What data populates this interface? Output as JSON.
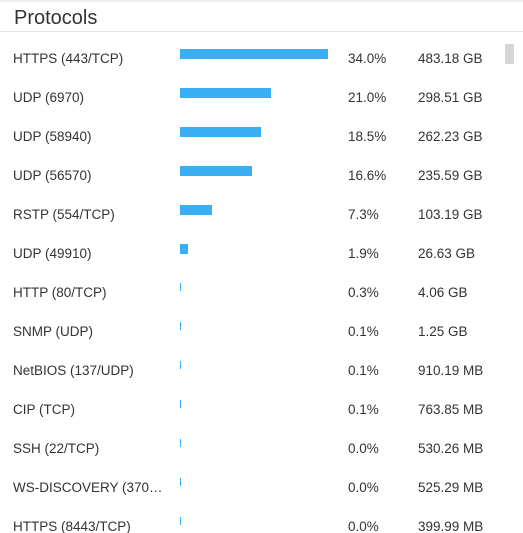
{
  "panel": {
    "title": "Protocols"
  },
  "colors": {
    "bar": "#3aaef2",
    "text": "#333333"
  },
  "protocols": [
    {
      "name": "HTTPS (443/TCP)",
      "share_pct": 34.0,
      "percent": "34.0%",
      "volume": "483.18 GB"
    },
    {
      "name": "UDP (6970)",
      "share_pct": 21.0,
      "percent": "21.0%",
      "volume": "298.51 GB"
    },
    {
      "name": "UDP (58940)",
      "share_pct": 18.5,
      "percent": "18.5%",
      "volume": "262.23 GB"
    },
    {
      "name": "UDP (56570)",
      "share_pct": 16.6,
      "percent": "16.6%",
      "volume": "235.59 GB"
    },
    {
      "name": "RSTP (554/TCP)",
      "share_pct": 7.3,
      "percent": "7.3%",
      "volume": "103.19 GB"
    },
    {
      "name": "UDP (49910)",
      "share_pct": 1.9,
      "percent": "1.9%",
      "volume": "26.63 GB"
    },
    {
      "name": "HTTP (80/TCP)",
      "share_pct": 0.3,
      "percent": "0.3%",
      "volume": "4.06 GB"
    },
    {
      "name": "SNMP (UDP)",
      "share_pct": 0.1,
      "percent": "0.1%",
      "volume": "1.25 GB"
    },
    {
      "name": "NetBIOS (137/UDP)",
      "share_pct": 0.1,
      "percent": "0.1%",
      "volume": "910.19 MB"
    },
    {
      "name": "CIP (TCP)",
      "share_pct": 0.1,
      "percent": "0.1%",
      "volume": "763.85 MB"
    },
    {
      "name": "SSH (22/TCP)",
      "share_pct": 0.0,
      "percent": "0.0%",
      "volume": "530.26 MB"
    },
    {
      "name": "WS-DISCOVERY (370…",
      "share_pct": 0.0,
      "percent": "0.0%",
      "volume": "525.29 MB"
    },
    {
      "name": "HTTPS (8443/TCP)",
      "share_pct": 0.0,
      "percent": "0.0%",
      "volume": "399.99 MB"
    }
  ]
}
